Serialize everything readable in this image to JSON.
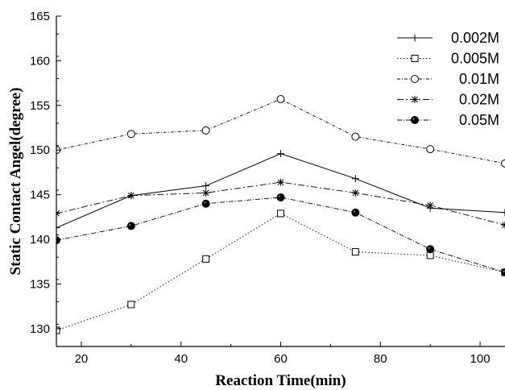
{
  "chart_data": {
    "type": "line",
    "title": "",
    "xlabel": "Reaction Time(min)",
    "ylabel": "Static Contact Angel(degree)",
    "xlim": [
      15,
      105
    ],
    "ylim": [
      128,
      165
    ],
    "x_ticks": [
      20,
      40,
      60,
      80,
      100
    ],
    "y_ticks": [
      130,
      135,
      140,
      145,
      150,
      155,
      160,
      165
    ],
    "legend_position": "top-right",
    "grid": false,
    "x": [
      15,
      30,
      45,
      60,
      75,
      90,
      105
    ],
    "series": [
      {
        "name": "0.002M",
        "marker": "plus",
        "dash": "solid",
        "values": [
          141.3,
          144.9,
          146.0,
          149.6,
          146.8,
          143.5,
          143.0
        ]
      },
      {
        "name": "0.005M",
        "marker": "square-open",
        "dash": "dotted",
        "values": [
          129.8,
          132.7,
          137.8,
          142.9,
          138.6,
          138.2,
          136.3
        ]
      },
      {
        "name": "0.01M",
        "marker": "circle-open",
        "dash": "dashdot",
        "values": [
          150.0,
          151.8,
          152.2,
          155.7,
          151.5,
          150.1,
          148.5
        ]
      },
      {
        "name": "0.02M",
        "marker": "asterisk",
        "dash": "dashdot-long",
        "values": [
          142.9,
          144.9,
          145.2,
          146.4,
          145.2,
          143.8,
          141.6
        ]
      },
      {
        "name": "0.05M",
        "marker": "circle-filled",
        "dash": "dashdot-short",
        "values": [
          139.9,
          141.5,
          144.0,
          144.7,
          143.0,
          138.9,
          136.3
        ]
      }
    ]
  }
}
